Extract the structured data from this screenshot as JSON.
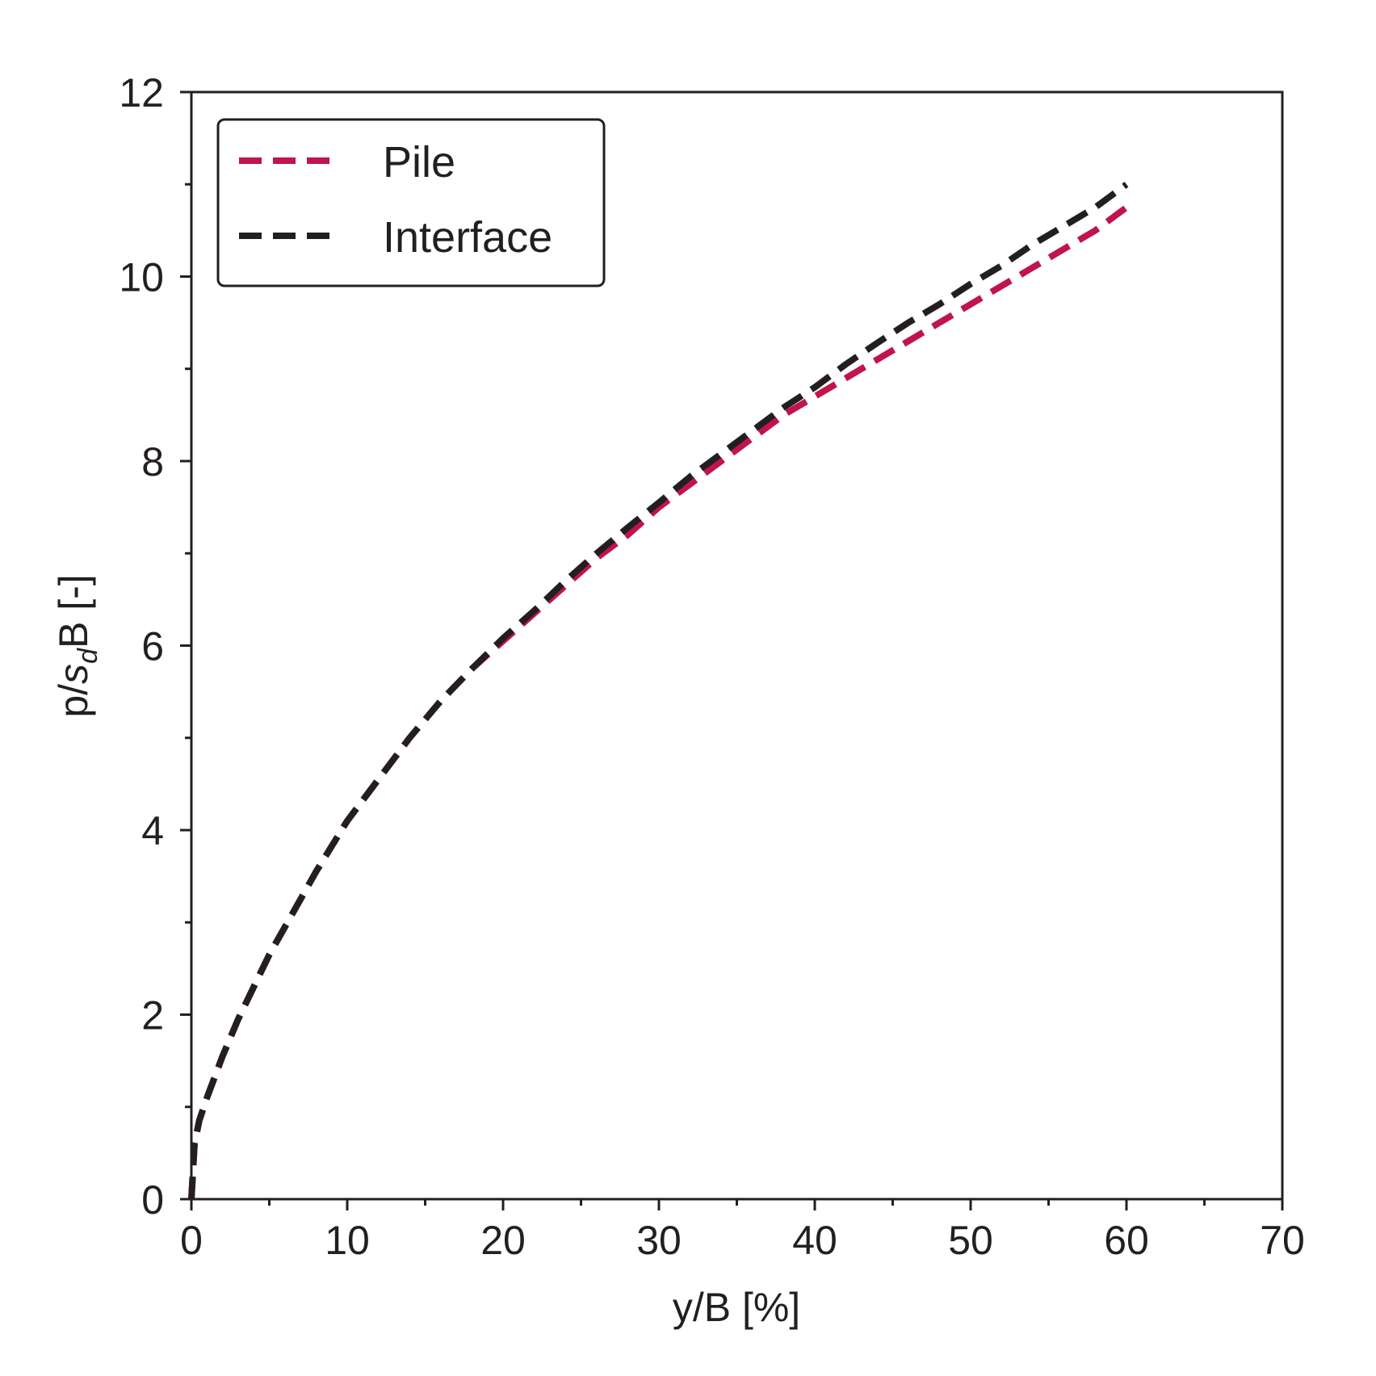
{
  "chart_data": {
    "type": "line",
    "title": "",
    "xlabel": "y/B [%]",
    "ylabel_parts": {
      "prefix": "p/",
      "italic": "s",
      "subscript": "d",
      "suffix": "B [-]"
    },
    "xlim": [
      0,
      70
    ],
    "ylim": [
      0,
      12
    ],
    "x_ticks": [
      0,
      10,
      20,
      30,
      40,
      50,
      60,
      70
    ],
    "y_ticks": [
      0,
      2,
      4,
      6,
      8,
      10,
      12
    ],
    "x_minor_ticks": [
      5,
      15,
      25,
      35,
      45,
      55,
      65
    ],
    "y_minor_ticks": [
      1,
      3,
      5,
      7,
      9,
      11
    ],
    "grid": false,
    "legend_position": "top-left",
    "series": [
      {
        "name": "Pile",
        "color": "#c0144a",
        "style": "dashed",
        "x": [
          0,
          0.2,
          0.5,
          1,
          2,
          3,
          4,
          5,
          6,
          8,
          10,
          12,
          14,
          16,
          18,
          20,
          22,
          24,
          26,
          28,
          30,
          32,
          34,
          36,
          38,
          40,
          42,
          44,
          46,
          48,
          50,
          52,
          54,
          56,
          58,
          60
        ],
        "y": [
          0,
          0.6,
          0.85,
          1.1,
          1.55,
          1.95,
          2.3,
          2.65,
          2.95,
          3.55,
          4.1,
          4.55,
          5.0,
          5.4,
          5.75,
          6.05,
          6.35,
          6.65,
          6.95,
          7.2,
          7.5,
          7.75,
          8.0,
          8.25,
          8.5,
          8.7,
          8.9,
          9.1,
          9.3,
          9.5,
          9.7,
          9.9,
          10.1,
          10.3,
          10.5,
          10.75
        ]
      },
      {
        "name": "Interface",
        "color": "#231f20",
        "style": "dashed",
        "x": [
          0,
          0.2,
          0.5,
          1,
          2,
          3,
          4,
          5,
          6,
          8,
          10,
          12,
          14,
          16,
          18,
          20,
          22,
          24,
          26,
          28,
          30,
          32,
          34,
          36,
          38,
          40,
          42,
          44,
          46,
          48,
          50,
          52,
          54,
          56,
          58,
          60
        ],
        "y": [
          0,
          0.6,
          0.85,
          1.1,
          1.55,
          1.95,
          2.3,
          2.65,
          2.95,
          3.55,
          4.1,
          4.55,
          5.0,
          5.4,
          5.75,
          6.08,
          6.38,
          6.7,
          7.0,
          7.28,
          7.55,
          7.83,
          8.08,
          8.33,
          8.58,
          8.8,
          9.05,
          9.28,
          9.5,
          9.7,
          9.92,
          10.12,
          10.35,
          10.55,
          10.75,
          11.0
        ]
      }
    ]
  }
}
